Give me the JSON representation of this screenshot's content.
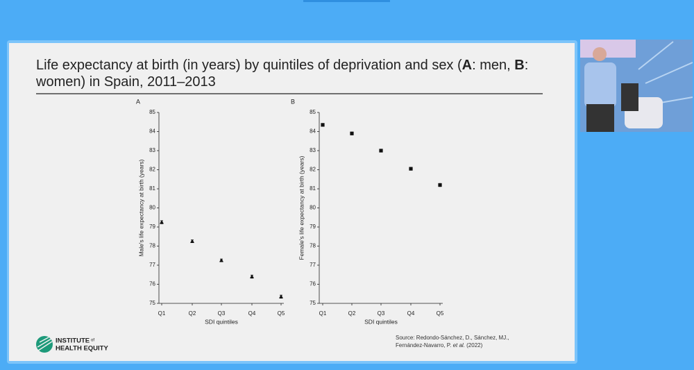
{
  "slide": {
    "title": [
      "Life expectancy at birth (in years) by quintiles of deprivation and sex (",
      "A",
      ": men, ",
      "B",
      ": women) in Spain, 2011–2013"
    ],
    "source": [
      "Source: Redondo-Sánchez, D., Sánchez, MJ., Fernández-Navarro, P. ",
      "et al.",
      " (2022)"
    ],
    "logo": [
      "INSTITUTE",
      "of",
      "HEALTH EQUITY"
    ]
  },
  "chart_data": [
    {
      "type": "scatter",
      "panel": "A",
      "marker": "triangle",
      "color": "#111111",
      "xlabel": "SDI quintiles",
      "ylabel": "Male's life expectancy at birth (years)",
      "categories": [
        "Q1",
        "Q2",
        "Q3",
        "Q4",
        "Q5"
      ],
      "values": [
        79.25,
        78.25,
        77.25,
        76.4,
        75.35
      ],
      "errors": [
        0.08,
        0.07,
        0.07,
        0.08,
        0.08
      ],
      "ylim": [
        75,
        85
      ],
      "yticks": [
        75,
        76,
        77,
        78,
        79,
        80,
        81,
        82,
        83,
        84,
        85
      ]
    },
    {
      "type": "scatter",
      "panel": "B",
      "marker": "square",
      "color": "#111111",
      "xlabel": "SDI quintiles",
      "ylabel": "Female's life expectancy at birth (years)",
      "categories": [
        "Q1",
        "Q2",
        "Q3",
        "Q4",
        "Q5"
      ],
      "values": [
        84.35,
        83.9,
        83.0,
        82.05,
        81.2
      ],
      "errors": [
        0.07,
        0.07,
        0.07,
        0.07,
        0.08
      ],
      "ylim": [
        75,
        85
      ],
      "yticks": [
        75,
        76,
        77,
        78,
        79,
        80,
        81,
        82,
        83,
        84,
        85
      ]
    }
  ]
}
